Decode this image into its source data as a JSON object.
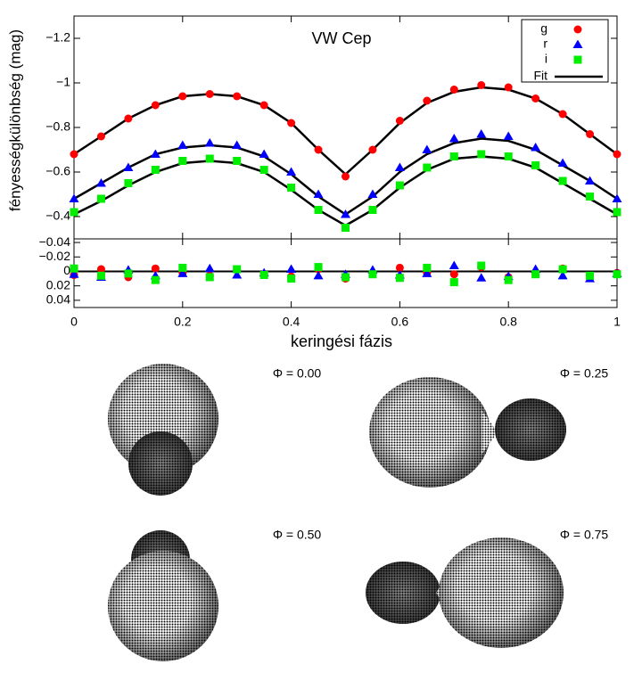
{
  "chart_data": [
    {
      "type": "scatter",
      "title": "VW Cep",
      "ylabel": "fényességkülönbség (mag)",
      "x": [
        0,
        0.05,
        0.1,
        0.15,
        0.2,
        0.25,
        0.3,
        0.35,
        0.4,
        0.45,
        0.5,
        0.55,
        0.6,
        0.65,
        0.7,
        0.75,
        0.8,
        0.85,
        0.9,
        0.95,
        1
      ],
      "ylim": [
        -0.3,
        -1.3
      ],
      "yticks": [
        {
          "value": -1.2,
          "label": "−1.2"
        },
        {
          "value": -1,
          "label": "−1"
        },
        {
          "value": -0.8,
          "label": "−0.8"
        },
        {
          "value": -0.6,
          "label": "−0.6"
        },
        {
          "value": -0.4,
          "label": "−0.4"
        }
      ],
      "legend": "upper right",
      "series": [
        {
          "name": "g",
          "color": "#ff0000",
          "marker": "circle",
          "values": [
            -0.68,
            -0.76,
            -0.84,
            -0.9,
            -0.94,
            -0.95,
            -0.94,
            -0.9,
            -0.82,
            -0.7,
            -0.58,
            -0.7,
            -0.83,
            -0.92,
            -0.97,
            -0.99,
            -0.98,
            -0.93,
            -0.86,
            -0.77,
            -0.68
          ]
        },
        {
          "name": "r",
          "color": "#0000ff",
          "marker": "triangle",
          "values": [
            -0.48,
            -0.55,
            -0.62,
            -0.68,
            -0.72,
            -0.73,
            -0.72,
            -0.68,
            -0.6,
            -0.5,
            -0.41,
            -0.5,
            -0.62,
            -0.7,
            -0.75,
            -0.77,
            -0.76,
            -0.71,
            -0.64,
            -0.56,
            -0.48
          ]
        },
        {
          "name": "i",
          "color": "#00ee00",
          "marker": "square",
          "values": [
            -0.42,
            -0.48,
            -0.55,
            -0.61,
            -0.65,
            -0.66,
            -0.65,
            -0.61,
            -0.53,
            -0.43,
            -0.35,
            -0.43,
            -0.54,
            -0.62,
            -0.67,
            -0.68,
            -0.67,
            -0.63,
            -0.56,
            -0.49,
            -0.42
          ]
        }
      ],
      "fit": {
        "name": "Fit",
        "color": "#000000",
        "values": [
          [
            -0.68,
            -0.76,
            -0.84,
            -0.9,
            -0.94,
            -0.95,
            -0.94,
            -0.9,
            -0.82,
            -0.7,
            -0.59,
            -0.7,
            -0.82,
            -0.91,
            -0.96,
            -0.98,
            -0.97,
            -0.93,
            -0.86,
            -0.77,
            -0.68
          ],
          [
            -0.48,
            -0.55,
            -0.62,
            -0.68,
            -0.71,
            -0.72,
            -0.71,
            -0.67,
            -0.59,
            -0.49,
            -0.41,
            -0.49,
            -0.6,
            -0.68,
            -0.73,
            -0.75,
            -0.74,
            -0.7,
            -0.63,
            -0.56,
            -0.48
          ],
          [
            -0.41,
            -0.47,
            -0.54,
            -0.6,
            -0.64,
            -0.65,
            -0.64,
            -0.6,
            -0.52,
            -0.43,
            -0.36,
            -0.43,
            -0.53,
            -0.61,
            -0.66,
            -0.67,
            -0.66,
            -0.62,
            -0.55,
            -0.48,
            -0.41
          ]
        ]
      }
    },
    {
      "type": "scatter",
      "xlabel": "keringési fázis",
      "xlim": [
        0,
        1
      ],
      "xticks": [
        0,
        0.2,
        0.4,
        0.6,
        0.8,
        1
      ],
      "ylim": [
        0.05,
        -0.045
      ],
      "yticks": [
        {
          "value": -0.04,
          "label": "−0.04"
        },
        {
          "value": -0.02,
          "label": "−0.02"
        },
        0,
        0.02,
        0.04
      ],
      "series": [
        {
          "color": "#ff0000",
          "marker": "circle",
          "values": [
            0.005,
            -0.003,
            0.008,
            -0.004,
            0.002,
            0.006,
            -0.002,
            0.004,
            0.007,
            -0.003,
            0.01,
            0.003,
            -0.005,
            0.002,
            0.004,
            -0.006,
            0.008,
            0.003,
            -0.004,
            0.006,
            0.002
          ]
        },
        {
          "color": "#0000ff",
          "marker": "triangle",
          "values": [
            0.004,
            0.008,
            -0.002,
            0.006,
            0.003,
            -0.004,
            0.005,
            0.002,
            -0.003,
            0.006,
            0.004,
            -0.002,
            0.005,
            0.003,
            -0.008,
            0.009,
            0.007,
            -0.003,
            0.006,
            0.01,
            0.003
          ]
        },
        {
          "color": "#00ee00",
          "marker": "square",
          "values": [
            -0.004,
            0.006,
            0.003,
            0.012,
            -0.005,
            0.008,
            -0.003,
            0.005,
            0.01,
            -0.006,
            0.008,
            0.004,
            0.009,
            -0.005,
            0.015,
            -0.008,
            0.012,
            0.004,
            -0.003,
            0.006,
            0.004
          ]
        }
      ]
    }
  ],
  "panels": [
    {
      "label": "Φ = 0.00"
    },
    {
      "label": "Φ = 0.25"
    },
    {
      "label": "Φ = 0.50"
    },
    {
      "label": "Φ = 0.75"
    }
  ]
}
